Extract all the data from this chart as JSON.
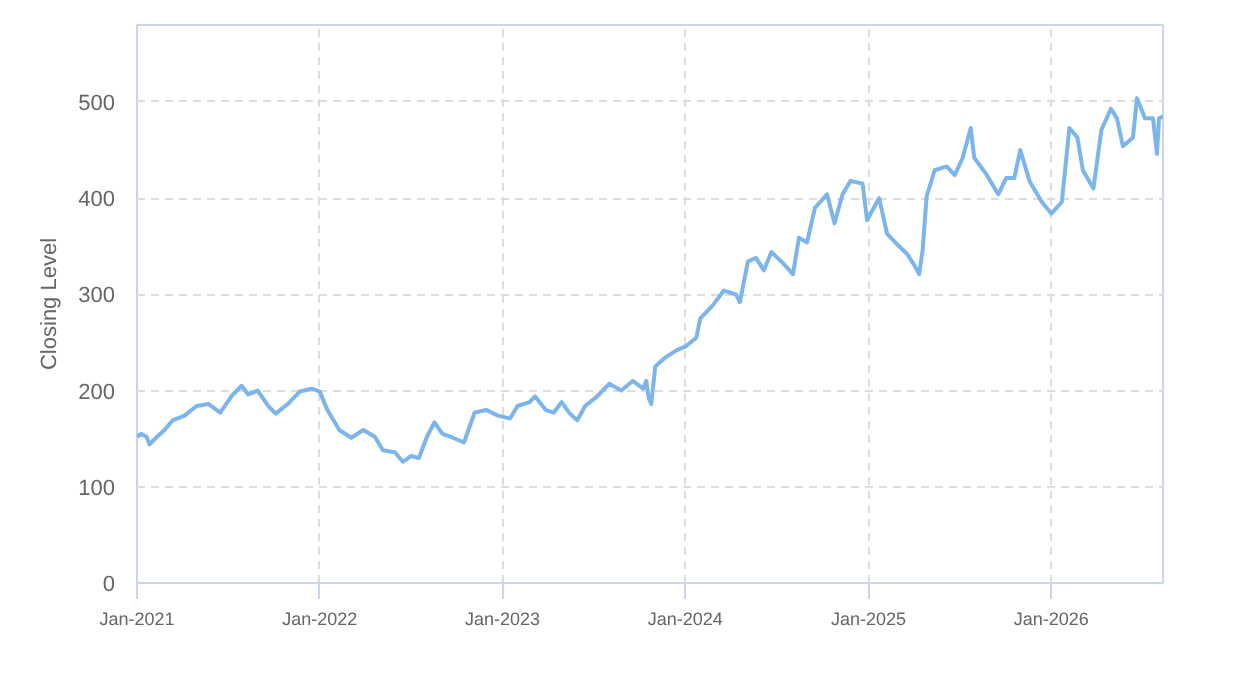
{
  "chart_data": {
    "type": "line",
    "ylabel": "Closing Level",
    "xlim": [
      "2021-01-01",
      "2026-08-12"
    ],
    "ylim": [
      0,
      580
    ],
    "yticks": [
      0,
      100,
      200,
      300,
      400,
      500
    ],
    "xticks": [
      {
        "value": "2021-01-01",
        "label": "Jan-2021"
      },
      {
        "value": "2022-01-01",
        "label": "Jan-2022"
      },
      {
        "value": "2023-01-01",
        "label": "Jan-2023"
      },
      {
        "value": "2024-01-01",
        "label": "Jan-2024"
      },
      {
        "value": "2025-01-01",
        "label": "Jan-2025"
      },
      {
        "value": "2026-01-01",
        "label": "Jan-2026"
      }
    ],
    "grid": true,
    "marker": "none",
    "line_style": "solid",
    "series": [
      {
        "color": "#7cb5ec",
        "x": [
          "2021-01-01",
          "2021-01-09",
          "2021-01-20",
          "2021-01-26",
          "2021-02-10",
          "2021-02-25",
          "2021-03-13",
          "2021-04-06",
          "2021-04-30",
          "2021-05-24",
          "2021-06-16",
          "2021-07-10",
          "2021-07-29",
          "2021-08-11",
          "2021-08-30",
          "2021-09-20",
          "2021-10-05",
          "2021-10-29",
          "2021-11-22",
          "2021-12-16",
          "2022-01-01",
          "2022-01-16",
          "2022-02-09",
          "2022-03-05",
          "2022-03-29",
          "2022-04-21",
          "2022-05-07",
          "2022-05-31",
          "2022-06-16",
          "2022-07-02",
          "2022-07-18",
          "2022-08-03",
          "2022-08-18",
          "2022-09-03",
          "2022-09-24",
          "2022-10-16",
          "2022-11-06",
          "2022-11-29",
          "2022-12-23",
          "2023-01-16",
          "2023-01-31",
          "2023-02-24",
          "2023-03-07",
          "2023-03-28",
          "2023-04-13",
          "2023-04-29",
          "2023-05-14",
          "2023-05-30",
          "2023-06-15",
          "2023-07-09",
          "2023-08-02",
          "2023-08-26",
          "2023-09-18",
          "2023-10-09",
          "2023-10-15",
          "2023-10-20",
          "2023-10-25",
          "2023-11-02",
          "2023-11-21",
          "2023-12-15",
          "2024-01-02",
          "2024-01-23",
          "2024-01-31",
          "2024-02-24",
          "2024-03-18",
          "2024-04-11",
          "2024-04-19",
          "2024-05-05",
          "2024-05-21",
          "2024-06-06",
          "2024-06-21",
          "2024-07-15",
          "2024-08-03",
          "2024-08-15",
          "2024-08-31",
          "2024-09-16",
          "2024-10-10",
          "2024-10-25",
          "2024-11-10",
          "2024-11-26",
          "2024-12-20",
          "2024-12-29",
          "2025-01-22",
          "2025-02-07",
          "2025-03-03",
          "2025-03-19",
          "2025-04-04",
          "2025-04-12",
          "2025-04-19",
          "2025-04-27",
          "2025-05-13",
          "2025-06-06",
          "2025-06-22",
          "2025-07-08",
          "2025-07-24",
          "2025-07-31",
          "2025-08-24",
          "2025-09-17",
          "2025-10-03",
          "2025-10-19",
          "2025-10-31",
          "2025-11-19",
          "2025-12-13",
          "2026-01-01",
          "2026-01-22",
          "2026-02-06",
          "2026-02-22",
          "2026-03-05",
          "2026-03-26",
          "2026-04-11",
          "2026-04-30",
          "2026-05-12",
          "2026-05-24",
          "2026-06-13",
          "2026-06-21",
          "2026-07-07",
          "2026-07-23",
          "2026-07-31",
          "2026-08-04",
          "2026-08-12"
        ],
        "values": [
          152,
          155,
          152,
          144,
          152,
          159,
          169,
          174,
          184,
          186,
          177,
          195,
          205,
          196,
          200,
          184,
          176,
          186,
          199,
          202,
          199,
          180,
          159,
          151,
          159,
          152,
          138,
          136,
          126,
          132,
          130,
          152,
          167,
          155,
          151,
          146,
          177,
          180,
          174,
          171,
          184,
          188,
          194,
          180,
          177,
          188,
          177,
          169,
          184,
          194,
          207,
          200,
          210,
          202,
          210,
          192,
          186,
          225,
          234,
          242,
          246,
          255,
          275,
          288,
          304,
          300,
          292,
          334,
          338,
          325,
          344,
          332,
          321,
          359,
          354,
          390,
          404,
          374,
          404,
          418,
          415,
          377,
          400,
          363,
          350,
          342,
          329,
          321,
          346,
          402,
          429,
          433,
          424,
          442,
          473,
          442,
          425,
          404,
          421,
          421,
          450,
          417,
          396,
          384,
          396,
          473,
          463,
          429,
          410,
          471,
          493,
          483,
          454,
          463,
          504,
          483,
          483,
          446,
          483,
          485
        ]
      }
    ]
  }
}
